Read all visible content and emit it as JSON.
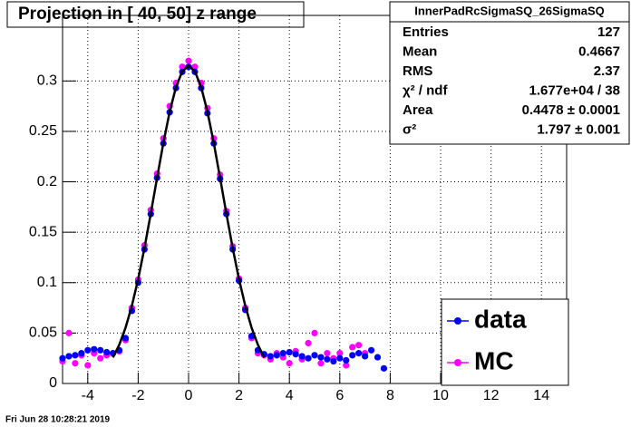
{
  "chart_data": {
    "type": "scatter",
    "title": "Projection in [  40,  50] z range",
    "timestamp": "Fri Jun 28 10:28:21 2019",
    "xlim": [
      -5,
      15
    ],
    "ylim": [
      0,
      0.365
    ],
    "xticks": [
      -4,
      -2,
      0,
      2,
      4,
      6,
      8,
      10,
      12,
      14
    ],
    "yticks": [
      0,
      0.05,
      0.1,
      0.15,
      0.2,
      0.25,
      0.3
    ],
    "grid": true,
    "x": [
      -5,
      -4.75,
      -4.5,
      -4.25,
      -4,
      -3.75,
      -3.5,
      -3.25,
      -3,
      -2.75,
      -2.5,
      -2.25,
      -2,
      -1.75,
      -1.5,
      -1.25,
      -1,
      -0.75,
      -0.5,
      -0.25,
      0,
      0.25,
      0.5,
      0.75,
      1,
      1.25,
      1.5,
      1.75,
      2,
      2.25,
      2.5,
      2.75,
      3,
      3.25,
      3.5,
      3.75,
      4,
      4.25,
      4.5,
      4.75,
      5,
      5.25,
      5.5,
      5.75,
      6,
      6.25,
      6.5,
      6.75,
      7,
      7.25,
      7.5,
      7.75
    ],
    "series": [
      {
        "name": "data",
        "color": "#0000ff",
        "values": [
          0.025,
          0.027,
          0.028,
          0.03,
          0.033,
          0.034,
          0.033,
          0.031,
          0.03,
          0.033,
          0.045,
          0.072,
          0.1,
          0.133,
          0.168,
          0.204,
          0.238,
          0.269,
          0.293,
          0.309,
          0.314,
          0.309,
          0.293,
          0.268,
          0.238,
          0.203,
          0.168,
          0.133,
          0.102,
          0.073,
          0.047,
          0.033,
          0.029,
          0.027,
          0.028,
          0.03,
          0.031,
          0.029,
          0.027,
          0.025,
          0.028,
          0.026,
          0.024,
          0.022,
          0.025,
          0.023,
          0.028,
          0.03,
          0.027,
          0.033,
          0.026,
          0.015
        ]
      },
      {
        "name": "MC",
        "color": "#ff00ff",
        "values": [
          0.022,
          0.05,
          0.02,
          0.028,
          0.018,
          0.03,
          0.025,
          0.028,
          0.03,
          0.032,
          0.043,
          0.075,
          0.103,
          0.137,
          0.172,
          0.208,
          0.243,
          0.275,
          0.298,
          0.314,
          0.32,
          0.314,
          0.298,
          0.273,
          0.243,
          0.207,
          0.171,
          0.136,
          0.104,
          0.075,
          0.045,
          0.03,
          0.028,
          0.024,
          0.03,
          0.026,
          0.02,
          0.032,
          0.024,
          0.04,
          0.05,
          0.02,
          0.03,
          0.025,
          0.03,
          0.018,
          0.036,
          0.038,
          0.03,
          null,
          null,
          null
        ]
      }
    ],
    "fit": {
      "color": "#000000",
      "x": [
        -3,
        -2.75,
        -2.5,
        -2.25,
        -2,
        -1.75,
        -1.5,
        -1.25,
        -1,
        -0.75,
        -0.5,
        -0.25,
        0,
        0.25,
        0.5,
        0.75,
        1,
        1.25,
        1.5,
        1.75,
        2,
        2.25,
        2.5,
        2.75,
        3
      ],
      "values": [
        0.0258,
        0.0384,
        0.0553,
        0.077,
        0.1035,
        0.1344,
        0.1684,
        0.2039,
        0.2385,
        0.2694,
        0.2938,
        0.3096,
        0.315,
        0.3096,
        0.2938,
        0.2694,
        0.2385,
        0.2039,
        0.1684,
        0.1344,
        0.1035,
        0.077,
        0.0553,
        0.0384,
        0.0258
      ]
    },
    "stats": {
      "title": "InnerPadRcSigmaSQ_26SigmaSQ",
      "rows": [
        [
          "Entries",
          "127"
        ],
        [
          "Mean",
          "0.4667"
        ],
        [
          "RMS",
          "2.37"
        ],
        [
          "χ² / ndf",
          "1.677e+04 / 38"
        ],
        [
          "Area",
          "0.4478 ± 0.0001"
        ],
        [
          "σ²",
          "1.797 ± 0.001"
        ]
      ]
    }
  }
}
